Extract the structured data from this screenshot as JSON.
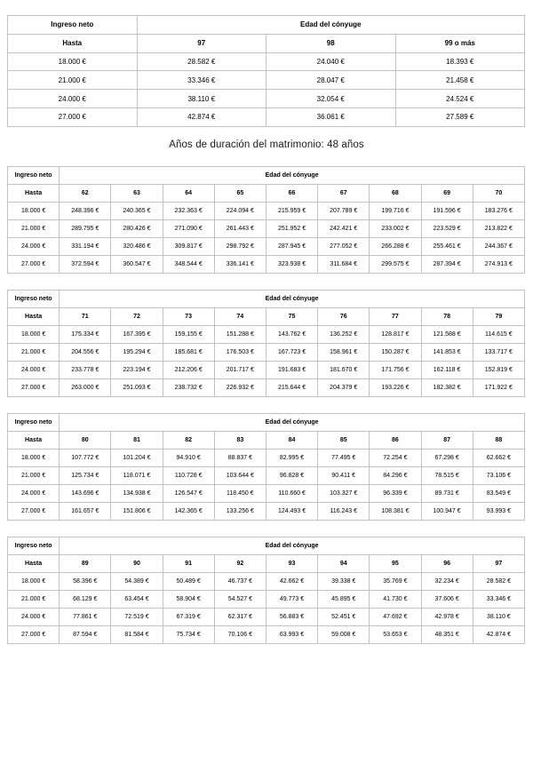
{
  "title": "Años de duración del matrimonio: 48 años",
  "labels": {
    "income": "Ingreso neto",
    "spouse_age": "Edad del cónyuge",
    "upto": "Hasta"
  },
  "tables": [
    {
      "id": "ages-97-99",
      "ages": [
        "97",
        "98",
        "99 o más"
      ],
      "rows": [
        {
          "income": "18.000 €",
          "values": [
            "28.582 €",
            "24.040 €",
            "18.393 €"
          ]
        },
        {
          "income": "21.000 €",
          "values": [
            "33.346 €",
            "28.047 €",
            "21.458 €"
          ]
        },
        {
          "income": "24.000 €",
          "values": [
            "38.110 €",
            "32.054 €",
            "24.524 €"
          ]
        },
        {
          "income": "27.000 €",
          "values": [
            "42.874 €",
            "36.061 €",
            "27.589 €"
          ]
        }
      ]
    },
    {
      "id": "ages-62-70",
      "ages": [
        "62",
        "63",
        "64",
        "65",
        "66",
        "67",
        "68",
        "69",
        "70"
      ],
      "rows": [
        {
          "income": "18.000 €",
          "values": [
            "248.396 €",
            "240.365 €",
            "232.363 €",
            "224.094 €",
            "215.959 €",
            "207.789 €",
            "199.716 €",
            "191.596 €",
            "183.276 €"
          ]
        },
        {
          "income": "21.000 €",
          "values": [
            "289.795 €",
            "280.426 €",
            "271.090 €",
            "261.443 €",
            "251.952 €",
            "242.421 €",
            "233.002 €",
            "223.529 €",
            "213.822 €"
          ]
        },
        {
          "income": "24.000 €",
          "values": [
            "331.194 €",
            "320.486 €",
            "309.817 €",
            "298.792 €",
            "287.945 €",
            "277.052 €",
            "266.288 €",
            "255.461 €",
            "244.367 €"
          ]
        },
        {
          "income": "27.000 €",
          "values": [
            "372.594 €",
            "360.547 €",
            "348.544 €",
            "336.141 €",
            "323.938 €",
            "311.684 €",
            "299.575 €",
            "287.394 €",
            "274.913 €"
          ]
        }
      ]
    },
    {
      "id": "ages-71-79",
      "ages": [
        "71",
        "72",
        "73",
        "74",
        "75",
        "76",
        "77",
        "78",
        "79"
      ],
      "rows": [
        {
          "income": "18.000 €",
          "values": [
            "175.334 €",
            "167.395 €",
            "159.155 €",
            "151.288 €",
            "143.762 €",
            "136.252 €",
            "128.817 €",
            "121.588 €",
            "114.615 €"
          ]
        },
        {
          "income": "21.000 €",
          "values": [
            "204.556 €",
            "195.294 €",
            "185.681 €",
            "176.503 €",
            "167.723 €",
            "158.961 €",
            "150.287 €",
            "141.853 €",
            "133.717 €"
          ]
        },
        {
          "income": "24.000 €",
          "values": [
            "233.778 €",
            "223.194 €",
            "212.206 €",
            "201.717 €",
            "191.683 €",
            "181.670 €",
            "171.756 €",
            "162.118 €",
            "152.819 €"
          ]
        },
        {
          "income": "27.000 €",
          "values": [
            "263.000 €",
            "251.093 €",
            "238.732 €",
            "226.932 €",
            "215.644 €",
            "204.379 €",
            "193.226 €",
            "182.382 €",
            "171.922 €"
          ]
        }
      ]
    },
    {
      "id": "ages-80-88",
      "ages": [
        "80",
        "81",
        "82",
        "83",
        "84",
        "85",
        "86",
        "87",
        "88"
      ],
      "rows": [
        {
          "income": "18.000 €",
          "values": [
            "107.772 €",
            "101.204 €",
            "94.910 €",
            "88.837 €",
            "82.995 €",
            "77.495 €",
            "72.254 €",
            "67.298 €",
            "62.662 €"
          ]
        },
        {
          "income": "21.000 €",
          "values": [
            "125.734 €",
            "118.071 €",
            "110.728 €",
            "103.644 €",
            "96.828 €",
            "90.411 €",
            "84.296 €",
            "78.515 €",
            "73.106 €"
          ]
        },
        {
          "income": "24.000 €",
          "values": [
            "143.696 €",
            "134.938 €",
            "126.547 €",
            "118.450 €",
            "110.660 €",
            "103.327 €",
            "96.339 €",
            "89.731 €",
            "83.549 €"
          ]
        },
        {
          "income": "27.000 €",
          "values": [
            "161.657 €",
            "151.806 €",
            "142.365 €",
            "133.256 €",
            "124.493 €",
            "116.243 €",
            "108.381 €",
            "100.947 €",
            "93.993 €"
          ]
        }
      ]
    },
    {
      "id": "ages-89-97",
      "ages": [
        "89",
        "90",
        "91",
        "92",
        "93",
        "94",
        "95",
        "96",
        "97"
      ],
      "rows": [
        {
          "income": "18.000 €",
          "values": [
            "58.396 €",
            "54.389 €",
            "50.489 €",
            "46.737 €",
            "42.662 €",
            "39.338 €",
            "35.769 €",
            "32.234 €",
            "28.582 €"
          ]
        },
        {
          "income": "21.000 €",
          "values": [
            "68.129 €",
            "63.454 €",
            "58.904 €",
            "54.527 €",
            "49.773 €",
            "45.895 €",
            "41.730 €",
            "37.606 €",
            "33.346 €"
          ]
        },
        {
          "income": "24.000 €",
          "values": [
            "77.861 €",
            "72.519 €",
            "67.319 €",
            "62.317 €",
            "56.883 €",
            "52.451 €",
            "47.692 €",
            "42.978 €",
            "38.110 €"
          ]
        },
        {
          "income": "27.000 €",
          "values": [
            "87.594 €",
            "81.584 €",
            "75.734 €",
            "70.106 €",
            "63.993 €",
            "59.008 €",
            "53.653 €",
            "48.351 €",
            "42.874 €"
          ]
        }
      ]
    }
  ]
}
